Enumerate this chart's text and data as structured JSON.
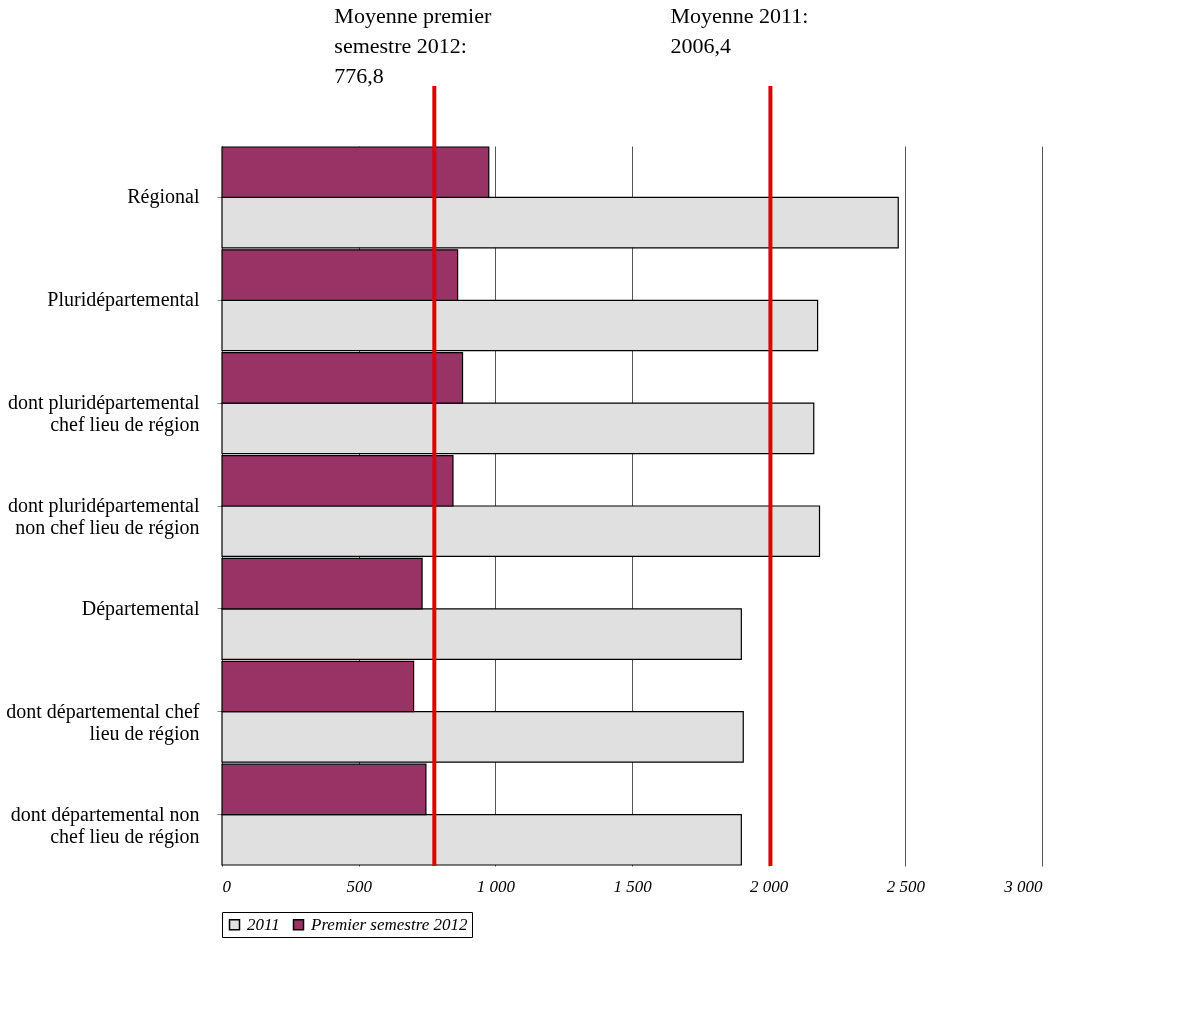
{
  "chart_data": {
    "type": "bar",
    "orientation": "horizontal",
    "categories": [
      "Régional",
      "Pluridépartemental",
      "dont pluridépartemental chef lieu de région",
      "dont pluridépartemental non chef lieu de région",
      "Départemental",
      "dont départemental chef lieu de région",
      "dont départemental non chef lieu de région"
    ],
    "series": [
      {
        "name": "2011",
        "color": "#e0e0e0",
        "values": [
          2474,
          2179,
          2165,
          2186,
          1900,
          1907,
          1900
        ]
      },
      {
        "name": "Premier semestre 2012",
        "color": "#993366",
        "values": [
          976,
          862,
          880,
          845,
          732,
          701,
          746
        ]
      }
    ],
    "xlim": [
      0,
      3000
    ],
    "xticks": [
      0,
      500,
      {
        "value": 1000,
        "label": "1 000"
      },
      {
        "value": 1500,
        "label": "1 500"
      },
      {
        "value": 2000,
        "label": "2 000"
      },
      {
        "value": 2500,
        "label": "2 500"
      },
      {
        "value": 3000,
        "label": "3 000"
      }
    ],
    "ref_lines": [
      {
        "axis": "x",
        "value": 776.8,
        "label": "Moyenne premier semestre 2012: 776,8",
        "color": "#e00000"
      },
      {
        "axis": "x",
        "value": 2006.4,
        "label": "Moyenne 2011: 2006,4",
        "color": "#e00000"
      }
    ],
    "grid": "x",
    "legend": "bottom"
  }
}
